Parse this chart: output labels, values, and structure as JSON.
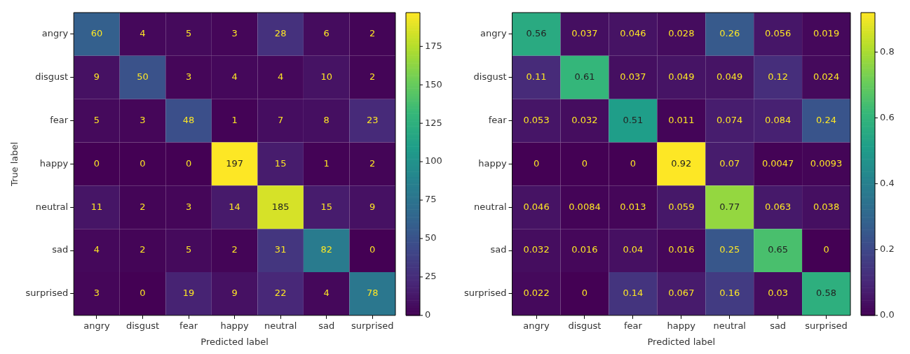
{
  "chart_data": [
    {
      "type": "heatmap",
      "xlabel": "Predicted label",
      "ylabel": "True label",
      "categories": [
        "angry",
        "disgust",
        "fear",
        "happy",
        "neutral",
        "sad",
        "surprised"
      ],
      "y_categories": [
        "angry",
        "disgust",
        "fear",
        "happy",
        "neutral",
        "sad",
        "surprised"
      ],
      "cells": [
        [
          60,
          4,
          5,
          3,
          28,
          6,
          2
        ],
        [
          9,
          50,
          3,
          4,
          4,
          10,
          2
        ],
        [
          5,
          3,
          48,
          1,
          7,
          8,
          23
        ],
        [
          0,
          0,
          0,
          197,
          15,
          1,
          2
        ],
        [
          11,
          2,
          3,
          14,
          185,
          15,
          9
        ],
        [
          4,
          2,
          5,
          2,
          31,
          82,
          0
        ],
        [
          3,
          0,
          19,
          9,
          22,
          4,
          78
        ]
      ],
      "clim": [
        0,
        197
      ],
      "cticks": [
        0,
        25,
        50,
        75,
        100,
        125,
        150,
        175
      ],
      "data_labels": true
    },
    {
      "type": "heatmap",
      "xlabel": "Predicted label",
      "categories": [
        "angry",
        "disgust",
        "fear",
        "happy",
        "neutral",
        "sad",
        "surprised"
      ],
      "y_categories": [
        "angry",
        "disgust",
        "fear",
        "happy",
        "neutral",
        "sad",
        "surprised"
      ],
      "cells": [
        [
          0.56,
          0.037,
          0.046,
          0.028,
          0.26,
          0.056,
          0.019
        ],
        [
          0.11,
          0.61,
          0.037,
          0.049,
          0.049,
          0.12,
          0.024
        ],
        [
          0.053,
          0.032,
          0.51,
          0.011,
          0.074,
          0.084,
          0.24
        ],
        [
          0,
          0,
          0,
          0.92,
          0.07,
          0.0047,
          0.0093
        ],
        [
          0.046,
          0.0084,
          0.013,
          0.059,
          0.77,
          0.063,
          0.038
        ],
        [
          0.032,
          0.016,
          0.04,
          0.016,
          0.25,
          0.65,
          0
        ],
        [
          0.022,
          0,
          0.14,
          0.067,
          0.16,
          0.03,
          0.58
        ]
      ],
      "clim": [
        0,
        0.92
      ],
      "cticks": [
        {
          "value": 0,
          "label": "0.0"
        },
        {
          "value": 0.2,
          "label": "0.2"
        },
        {
          "value": 0.4,
          "label": "0.4"
        },
        {
          "value": 0.6,
          "label": "0.6"
        },
        {
          "value": 0.8,
          "label": "0.8"
        }
      ],
      "data_labels": true
    }
  ]
}
